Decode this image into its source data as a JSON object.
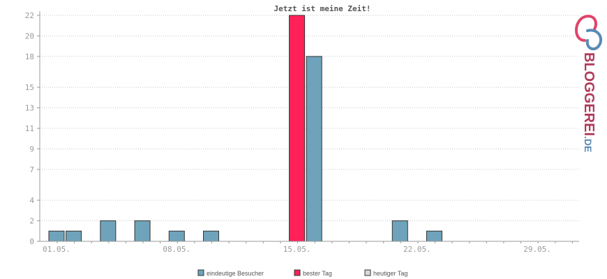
{
  "chart_data": {
    "type": "bar",
    "title": "Jetzt ist meine Zeit!",
    "y_ticks": [
      "0",
      "2",
      "4",
      "7",
      "9",
      "11",
      "13",
      "15",
      "18",
      "20",
      "22"
    ],
    "ylim": [
      0,
      22
    ],
    "x_tick_labels": [
      {
        "label": "01.05.",
        "day": 1
      },
      {
        "label": "08.05.",
        "day": 8
      },
      {
        "label": "15.05.",
        "day": 15
      },
      {
        "label": "22.05.",
        "day": 22
      },
      {
        "label": "29.05.",
        "day": 29
      }
    ],
    "days": 31,
    "series": [
      {
        "name": "eindeutige Besucher",
        "color": "#6fa3bb",
        "points": [
          {
            "day": 1,
            "value": 1
          },
          {
            "day": 2,
            "value": 1
          },
          {
            "day": 4,
            "value": 2
          },
          {
            "day": 6,
            "value": 2
          },
          {
            "day": 8,
            "value": 1
          },
          {
            "day": 10,
            "value": 1
          },
          {
            "day": 16,
            "value": 18
          },
          {
            "day": 21,
            "value": 2
          },
          {
            "day": 23,
            "value": 1
          }
        ]
      },
      {
        "name": "bester Tag",
        "color": "#ff2157",
        "points": [
          {
            "day": 15,
            "value": 22
          }
        ]
      },
      {
        "name": "heutiger Tag",
        "color": "#d9d9d9",
        "points": []
      }
    ],
    "grid": true,
    "legend_position": "bottom"
  },
  "logo": {
    "text_main": "BLOGGEREI",
    "text_suffix": ".DE",
    "color_main": "#b03a5b",
    "color_suffix": "#5a8ab5"
  }
}
